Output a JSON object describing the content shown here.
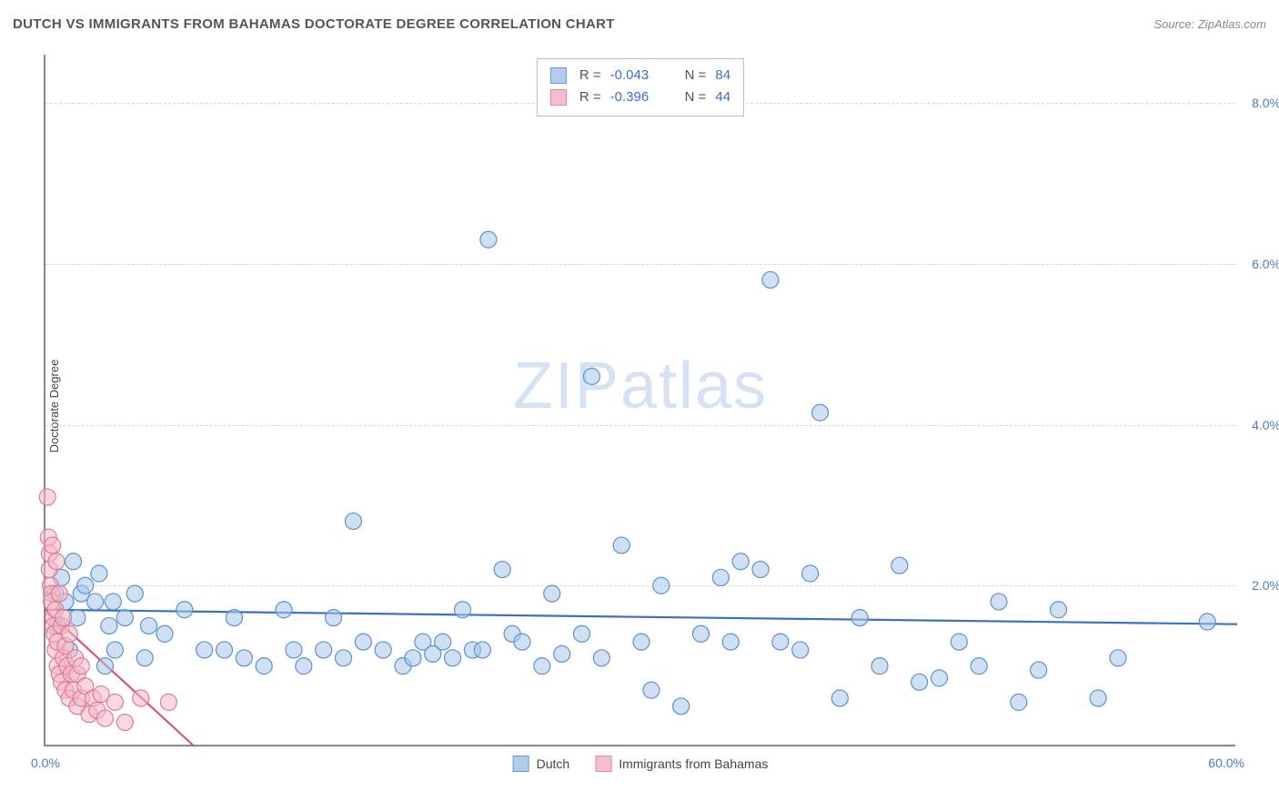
{
  "header": {
    "title": "DUTCH VS IMMIGRANTS FROM BAHAMAS DOCTORATE DEGREE CORRELATION CHART",
    "source_prefix": "Source: ",
    "source_name": "ZipAtlas.com"
  },
  "watermark": "ZIPatlas",
  "chart": {
    "type": "scatter",
    "y_axis_label": "Doctorate Degree",
    "xlim": [
      0,
      60
    ],
    "ylim": [
      0,
      8.6
    ],
    "x_tick_min_label": "0.0%",
    "x_tick_max_label": "60.0%",
    "y_ticks": [
      {
        "value": 2.0,
        "label": "2.0%"
      },
      {
        "value": 4.0,
        "label": "4.0%"
      },
      {
        "value": 6.0,
        "label": "6.0%"
      },
      {
        "value": 8.0,
        "label": "8.0%"
      }
    ],
    "grid_color": "#d8d8d8",
    "axis_color": "#888888",
    "background_color": "#ffffff",
    "marker_radius": 9,
    "marker_stroke_width": 1.2,
    "trend_line_width": 2.2,
    "series": [
      {
        "id": "dutch",
        "name": "Dutch",
        "fill_color": "#a9c7ea",
        "stroke_color": "#5d8fd1",
        "line_color": "#3b6fc4",
        "fill_opacity": 0.55,
        "r_value": "-0.043",
        "n_value": "84",
        "trend": {
          "x1": 0,
          "y1": 1.7,
          "x2": 60,
          "y2": 1.52
        },
        "points": [
          [
            0.5,
            1.9
          ],
          [
            0.6,
            1.5
          ],
          [
            0.8,
            2.1
          ],
          [
            1.0,
            1.8
          ],
          [
            1.2,
            1.2
          ],
          [
            1.4,
            2.3
          ],
          [
            1.6,
            1.6
          ],
          [
            1.8,
            1.9
          ],
          [
            2.0,
            2.0
          ],
          [
            2.5,
            1.8
          ],
          [
            2.7,
            2.15
          ],
          [
            3.0,
            1.0
          ],
          [
            3.2,
            1.5
          ],
          [
            3.4,
            1.8
          ],
          [
            3.5,
            1.2
          ],
          [
            4.0,
            1.6
          ],
          [
            4.5,
            1.9
          ],
          [
            5.0,
            1.1
          ],
          [
            5.2,
            1.5
          ],
          [
            6.0,
            1.4
          ],
          [
            7.0,
            1.7
          ],
          [
            8.0,
            1.2
          ],
          [
            9.0,
            1.2
          ],
          [
            9.5,
            1.6
          ],
          [
            10.0,
            1.1
          ],
          [
            11.0,
            1.0
          ],
          [
            12.0,
            1.7
          ],
          [
            12.5,
            1.2
          ],
          [
            13.0,
            1.0
          ],
          [
            14.0,
            1.2
          ],
          [
            14.5,
            1.6
          ],
          [
            15.0,
            1.1
          ],
          [
            15.5,
            2.8
          ],
          [
            16.0,
            1.3
          ],
          [
            17.0,
            1.2
          ],
          [
            18.0,
            1.0
          ],
          [
            18.5,
            1.1
          ],
          [
            19.0,
            1.3
          ],
          [
            19.5,
            1.15
          ],
          [
            20.0,
            1.3
          ],
          [
            20.5,
            1.1
          ],
          [
            21.0,
            1.7
          ],
          [
            21.5,
            1.2
          ],
          [
            22.0,
            1.2
          ],
          [
            22.3,
            6.3
          ],
          [
            23.0,
            2.2
          ],
          [
            23.5,
            1.4
          ],
          [
            24.0,
            1.3
          ],
          [
            25.0,
            1.0
          ],
          [
            25.5,
            1.9
          ],
          [
            26.0,
            1.15
          ],
          [
            27.0,
            1.4
          ],
          [
            27.5,
            4.6
          ],
          [
            28.0,
            1.1
          ],
          [
            29.0,
            2.5
          ],
          [
            30.0,
            1.3
          ],
          [
            30.5,
            0.7
          ],
          [
            31.0,
            2.0
          ],
          [
            32.0,
            0.5
          ],
          [
            33.0,
            1.4
          ],
          [
            34.0,
            2.1
          ],
          [
            34.5,
            1.3
          ],
          [
            35.0,
            2.3
          ],
          [
            36.0,
            2.2
          ],
          [
            36.5,
            5.8
          ],
          [
            37.0,
            1.3
          ],
          [
            38.0,
            1.2
          ],
          [
            38.5,
            2.15
          ],
          [
            39.0,
            4.15
          ],
          [
            40.0,
            0.6
          ],
          [
            41.0,
            1.6
          ],
          [
            42.0,
            1.0
          ],
          [
            43.0,
            2.25
          ],
          [
            44.0,
            0.8
          ],
          [
            45.0,
            0.85
          ],
          [
            46.0,
            1.3
          ],
          [
            47.0,
            1.0
          ],
          [
            48.0,
            1.8
          ],
          [
            49.0,
            0.55
          ],
          [
            50.0,
            0.95
          ],
          [
            51.0,
            1.7
          ],
          [
            53.0,
            0.6
          ],
          [
            54.0,
            1.1
          ],
          [
            58.5,
            1.55
          ]
        ]
      },
      {
        "id": "bahamas",
        "name": "Immigrants from Bahamas",
        "fill_color": "#f4b8c7",
        "stroke_color": "#e07a94",
        "line_color": "#d9546f",
        "fill_opacity": 0.55,
        "r_value": "-0.396",
        "n_value": "44",
        "trend": {
          "x1": 0,
          "y1": 1.7,
          "x2": 7.5,
          "y2": 0.0
        },
        "points": [
          [
            0.1,
            3.1
          ],
          [
            0.15,
            2.6
          ],
          [
            0.2,
            2.4
          ],
          [
            0.2,
            2.2
          ],
          [
            0.25,
            2.0
          ],
          [
            0.3,
            1.9
          ],
          [
            0.3,
            1.8
          ],
          [
            0.35,
            2.5
          ],
          [
            0.4,
            1.6
          ],
          [
            0.4,
            1.5
          ],
          [
            0.45,
            1.4
          ],
          [
            0.5,
            1.7
          ],
          [
            0.5,
            1.2
          ],
          [
            0.55,
            2.3
          ],
          [
            0.6,
            1.0
          ],
          [
            0.6,
            1.3
          ],
          [
            0.7,
            1.9
          ],
          [
            0.7,
            0.9
          ],
          [
            0.8,
            1.5
          ],
          [
            0.8,
            0.8
          ],
          [
            0.9,
            1.1
          ],
          [
            0.9,
            1.6
          ],
          [
            1.0,
            0.7
          ],
          [
            1.0,
            1.25
          ],
          [
            1.1,
            1.0
          ],
          [
            1.2,
            0.6
          ],
          [
            1.2,
            1.4
          ],
          [
            1.3,
            0.9
          ],
          [
            1.4,
            0.7
          ],
          [
            1.5,
            1.1
          ],
          [
            1.6,
            0.5
          ],
          [
            1.6,
            0.9
          ],
          [
            1.8,
            0.6
          ],
          [
            1.8,
            1.0
          ],
          [
            2.0,
            0.75
          ],
          [
            2.2,
            0.4
          ],
          [
            2.4,
            0.6
          ],
          [
            2.6,
            0.45
          ],
          [
            2.8,
            0.65
          ],
          [
            3.0,
            0.35
          ],
          [
            3.5,
            0.55
          ],
          [
            4.0,
            0.3
          ],
          [
            4.8,
            0.6
          ],
          [
            6.2,
            0.55
          ]
        ]
      }
    ],
    "legend_top": {
      "r_label": "R =",
      "n_label": "N ="
    }
  }
}
